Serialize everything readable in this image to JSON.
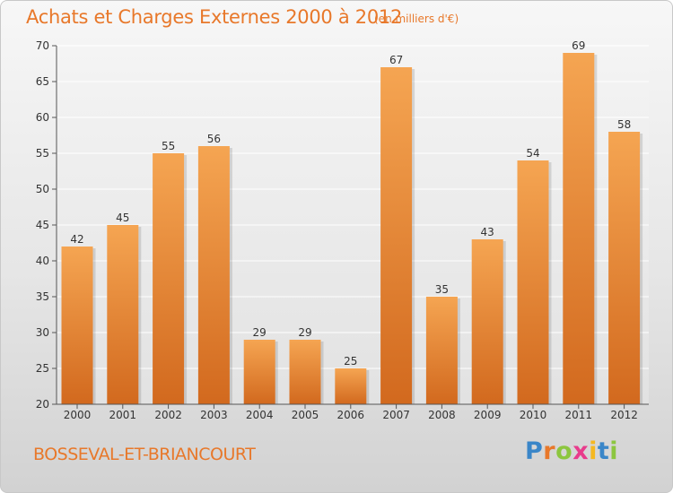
{
  "chart_data": {
    "type": "bar",
    "title": "Achats et Charges Externes 2000 à 2012",
    "subtitle": "(en milliers d'€)",
    "categories": [
      "2000",
      "2001",
      "2002",
      "2003",
      "2004",
      "2005",
      "2006",
      "2007",
      "2008",
      "2009",
      "2010",
      "2011",
      "2012"
    ],
    "values": [
      42,
      45,
      55,
      56,
      29,
      29,
      25,
      67,
      35,
      43,
      54,
      69,
      58
    ],
    "xlabel": "",
    "ylabel": "",
    "ylim": [
      20,
      70
    ],
    "yticks": [
      20,
      25,
      30,
      35,
      40,
      45,
      50,
      55,
      60,
      65,
      70
    ],
    "grid": true,
    "bar_color_top": "#f5a552",
    "bar_color_bottom": "#d2691e"
  },
  "footer": {
    "city": "BOSSEVAL-ET-BRIANCOURT",
    "logo": "Proxiti"
  },
  "colors": {
    "accent": "#e8782a"
  }
}
